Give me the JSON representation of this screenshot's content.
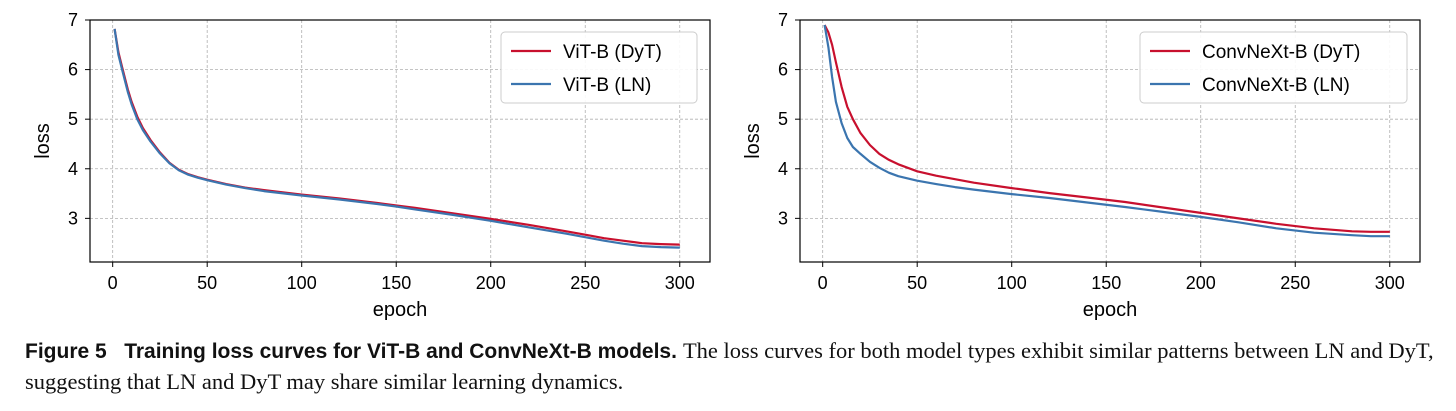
{
  "chart_data": [
    {
      "type": "line",
      "xlabel": "epoch",
      "ylabel": "loss",
      "xlim": [
        -12,
        316
      ],
      "ylim": [
        2.12,
        7.0
      ],
      "xticks": [
        0,
        50,
        100,
        150,
        200,
        250,
        300
      ],
      "yticks": [
        3,
        4,
        5,
        6,
        7
      ],
      "grid": true,
      "legend": "top-right",
      "series": [
        {
          "name": "ViT-B (DyT)",
          "color": "#c8102e",
          "x": [
            1,
            3,
            5,
            8,
            10,
            13,
            16,
            20,
            25,
            30,
            35,
            40,
            45,
            50,
            60,
            70,
            80,
            100,
            120,
            140,
            150,
            160,
            180,
            200,
            220,
            240,
            250,
            260,
            270,
            280,
            290,
            300
          ],
          "y": [
            6.82,
            6.35,
            6.05,
            5.6,
            5.35,
            5.05,
            4.82,
            4.58,
            4.33,
            4.12,
            3.98,
            3.89,
            3.83,
            3.78,
            3.69,
            3.62,
            3.57,
            3.48,
            3.4,
            3.31,
            3.26,
            3.21,
            3.1,
            2.99,
            2.87,
            2.74,
            2.67,
            2.6,
            2.55,
            2.5,
            2.48,
            2.47
          ]
        },
        {
          "name": "ViT-B (LN)",
          "color": "#3b75af",
          "x": [
            1,
            3,
            5,
            8,
            10,
            13,
            16,
            20,
            25,
            30,
            35,
            40,
            45,
            50,
            60,
            70,
            80,
            100,
            120,
            140,
            150,
            160,
            180,
            200,
            220,
            240,
            250,
            260,
            270,
            280,
            290,
            300
          ],
          "y": [
            6.82,
            6.3,
            6.0,
            5.55,
            5.3,
            5.0,
            4.78,
            4.55,
            4.31,
            4.11,
            3.97,
            3.88,
            3.82,
            3.77,
            3.68,
            3.61,
            3.55,
            3.46,
            3.38,
            3.29,
            3.24,
            3.18,
            3.07,
            2.95,
            2.82,
            2.69,
            2.62,
            2.55,
            2.49,
            2.44,
            2.42,
            2.41
          ]
        }
      ]
    },
    {
      "type": "line",
      "xlabel": "epoch",
      "ylabel": "loss",
      "xlim": [
        -12,
        316
      ],
      "ylim": [
        2.12,
        7.0
      ],
      "xticks": [
        0,
        50,
        100,
        150,
        200,
        250,
        300
      ],
      "yticks": [
        3,
        4,
        5,
        6,
        7
      ],
      "grid": true,
      "legend": "top-right",
      "series": [
        {
          "name": "ConvNeXt-B (DyT)",
          "color": "#c8102e",
          "x": [
            1,
            3,
            5,
            7,
            10,
            13,
            16,
            20,
            25,
            30,
            35,
            40,
            50,
            60,
            70,
            80,
            100,
            120,
            140,
            160,
            180,
            200,
            220,
            240,
            260,
            280,
            290,
            300
          ],
          "y": [
            6.9,
            6.75,
            6.5,
            6.15,
            5.65,
            5.25,
            5.0,
            4.72,
            4.48,
            4.3,
            4.18,
            4.09,
            3.95,
            3.86,
            3.79,
            3.72,
            3.61,
            3.51,
            3.42,
            3.33,
            3.22,
            3.11,
            3.0,
            2.89,
            2.8,
            2.74,
            2.73,
            2.73
          ]
        },
        {
          "name": "ConvNeXt-B (LN)",
          "color": "#3b75af",
          "x": [
            1,
            3,
            5,
            7,
            10,
            13,
            16,
            20,
            25,
            30,
            35,
            40,
            50,
            60,
            70,
            80,
            100,
            120,
            140,
            160,
            180,
            200,
            220,
            240,
            260,
            280,
            290,
            300
          ],
          "y": [
            6.9,
            6.45,
            5.85,
            5.35,
            4.92,
            4.62,
            4.44,
            4.3,
            4.14,
            4.02,
            3.92,
            3.85,
            3.76,
            3.69,
            3.63,
            3.58,
            3.49,
            3.41,
            3.32,
            3.23,
            3.13,
            3.03,
            2.92,
            2.8,
            2.71,
            2.66,
            2.64,
            2.64
          ]
        }
      ]
    }
  ],
  "caption": {
    "label": "Figure 5",
    "title": "Training loss curves for ViT-B and ConvNeXt-B models.",
    "text": "The loss curves for both model types exhibit similar patterns between LN and DyT, suggesting that LN and DyT may share similar learning dynamics."
  }
}
